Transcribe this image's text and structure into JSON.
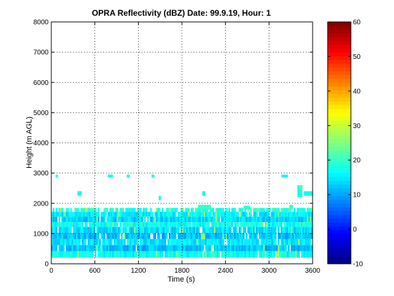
{
  "chart_data": {
    "type": "heatmap",
    "title": "OPRA Reflectivity (dBZ)  Date: 99.9.19, Hour: 1",
    "xlabel": "Time (s)",
    "ylabel": "Height (m AGL)",
    "xlim": [
      0,
      3600
    ],
    "ylim": [
      0,
      8000
    ],
    "x_ticks": [
      0,
      600,
      1200,
      1800,
      2400,
      3000,
      3600
    ],
    "y_ticks": [
      0,
      1000,
      2000,
      3000,
      4000,
      5000,
      6000,
      7000,
      8000
    ],
    "grid": true,
    "colormap": "jet",
    "colorbar": {
      "min": -10,
      "max": 60,
      "ticks": [
        -10,
        0,
        10,
        20,
        30,
        40,
        50,
        60
      ]
    },
    "layers": [
      {
        "ymin": 200,
        "ymax": 420,
        "dbz": 17
      },
      {
        "ymin": 420,
        "ymax": 620,
        "dbz": 12
      },
      {
        "ymin": 620,
        "ymax": 820,
        "dbz": 15
      },
      {
        "ymin": 820,
        "ymax": 1020,
        "dbz": 12
      },
      {
        "ymin": 1020,
        "ymax": 1220,
        "dbz": 14
      },
      {
        "ymin": 1220,
        "ymax": 1380,
        "dbz": 17
      },
      {
        "ymin": 1380,
        "ymax": 1560,
        "dbz": 13
      },
      {
        "ymin": 1560,
        "ymax": 1720,
        "dbz": 15
      },
      {
        "ymin": 1720,
        "ymax": 1850,
        "dbz": 19
      }
    ],
    "patches": [
      {
        "x": [
          2020,
          2200
        ],
        "y": [
          1800,
          1950
        ],
        "dbz": 20
      },
      {
        "x": [
          2650,
          2740
        ],
        "y": [
          1800,
          1920
        ],
        "dbz": 19
      },
      {
        "x": [
          3280,
          3330
        ],
        "y": [
          1800,
          1950
        ],
        "dbz": 20
      },
      {
        "x": [
          3390,
          3460
        ],
        "y": [
          2200,
          2600
        ],
        "dbz": 18
      },
      {
        "x": [
          3480,
          3600
        ],
        "y": [
          2250,
          2400
        ],
        "dbz": 17
      },
      {
        "x": [
          3420,
          3460
        ],
        "y": [
          2450,
          2600
        ],
        "dbz": 22
      },
      {
        "x": [
          360,
          420
        ],
        "y": [
          2250,
          2400
        ],
        "dbz": 17
      },
      {
        "x": [
          1480,
          1510
        ],
        "y": [
          2100,
          2250
        ],
        "dbz": 17
      },
      {
        "x": [
          2080,
          2120
        ],
        "y": [
          2250,
          2400
        ],
        "dbz": 17
      },
      {
        "x": [
          60,
          90
        ],
        "y": [
          2850,
          2950
        ],
        "dbz": 17
      },
      {
        "x": [
          780,
          850
        ],
        "y": [
          2850,
          2950
        ],
        "dbz": 17
      },
      {
        "x": [
          1040,
          1080
        ],
        "y": [
          2850,
          2950
        ],
        "dbz": 17
      },
      {
        "x": [
          1380,
          1420
        ],
        "y": [
          2850,
          2950
        ],
        "dbz": 17
      },
      {
        "x": [
          3170,
          3260
        ],
        "y": [
          2850,
          2950
        ],
        "dbz": 17
      }
    ]
  }
}
